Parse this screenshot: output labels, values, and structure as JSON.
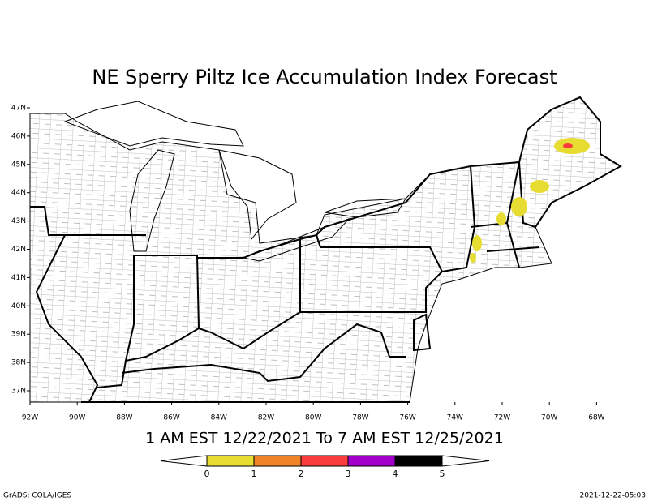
{
  "title": "NE Sperry Piltz Ice Accumulation Index Forecast",
  "subtitle": "1 AM EST 12/22/2021 To 7 AM EST 12/25/2021",
  "lat_labels": [
    "47N",
    "46N",
    "45N",
    "44N",
    "43N",
    "42N",
    "41N",
    "40N",
    "39N",
    "38N",
    "37N"
  ],
  "lon_labels": [
    "92W",
    "90W",
    "88W",
    "86W",
    "84W",
    "82W",
    "80W",
    "78W",
    "76W",
    "74W",
    "72W",
    "70W",
    "68W"
  ],
  "colorbar": {
    "bounds": [
      0,
      1,
      2,
      3,
      4,
      5
    ],
    "colors": [
      "#e6dc32",
      "#f08228",
      "#fa3c3c",
      "#a000c8",
      "#000000"
    ]
  },
  "credit": "GrADS: COLA/IGES",
  "timestamp": "2021-12-22-05:03"
}
